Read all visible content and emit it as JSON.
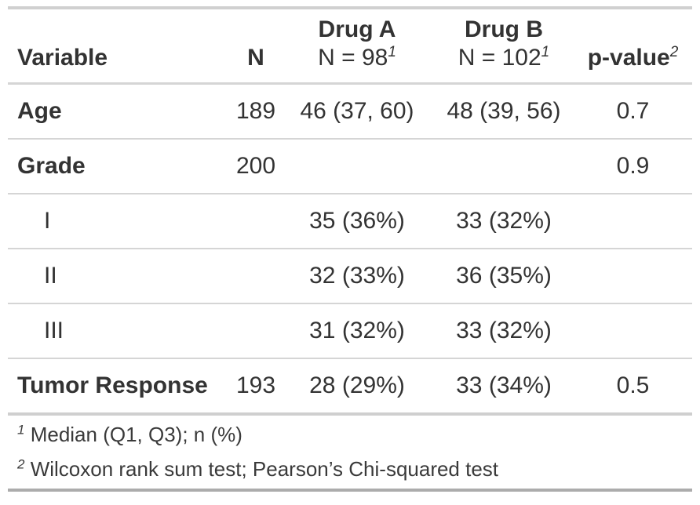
{
  "colors": {
    "text": "#333333",
    "rule_light": "#D5D5D5",
    "rule_thick_top": "#D0D0D0",
    "rule_thick_bottom": "#ACACAC",
    "background": "#FFFFFF"
  },
  "chart_data": {
    "type": "table",
    "columns": [
      {
        "label": "Variable",
        "align": "left"
      },
      {
        "label": "N",
        "align": "center"
      },
      {
        "label": "Drug A",
        "sublabel": "N = 98",
        "footnote_mark": "1",
        "align": "center"
      },
      {
        "label": "Drug B",
        "sublabel": "N = 102",
        "footnote_mark": "1",
        "align": "center"
      },
      {
        "label": "p-value",
        "footnote_mark": "2",
        "align": "center"
      }
    ],
    "rows": [
      {
        "label": "Age",
        "indent": false,
        "n": "189",
        "drug_a": "46 (37, 60)",
        "drug_b": "48 (39, 56)",
        "p_value": "0.7"
      },
      {
        "label": "Grade",
        "indent": false,
        "n": "200",
        "drug_a": "",
        "drug_b": "",
        "p_value": "0.9"
      },
      {
        "label": "I",
        "indent": true,
        "n": "",
        "drug_a": "35 (36%)",
        "drug_b": "33 (32%)",
        "p_value": ""
      },
      {
        "label": "II",
        "indent": true,
        "n": "",
        "drug_a": "32 (33%)",
        "drug_b": "36 (35%)",
        "p_value": ""
      },
      {
        "label": "III",
        "indent": true,
        "n": "",
        "drug_a": "31 (32%)",
        "drug_b": "33 (32%)",
        "p_value": ""
      },
      {
        "label": "Tumor Response",
        "indent": false,
        "n": "193",
        "drug_a": "28 (29%)",
        "drug_b": "33 (34%)",
        "p_value": "0.5"
      }
    ],
    "footnotes": [
      {
        "mark": "1",
        "text": "Median (Q1, Q3); n (%)"
      },
      {
        "mark": "2",
        "text": "Wilcoxon rank sum test; Pearson’s Chi-squared test"
      }
    ]
  }
}
